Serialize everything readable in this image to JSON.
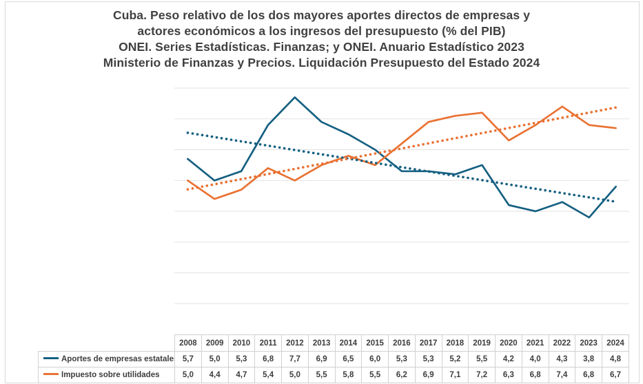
{
  "title": {
    "lines": [
      "Cuba. Peso relativo de los dos mayores aportes directos de empresas y",
      "actores económicos a los ingresos del presupuesto (% del PIB)",
      "ONEI. Series Estadísticas. Finanzas; y ONEI. Anuario Estadístico 2023",
      "Ministerio de Finanzas y Precios. Liquidación Presupuesto del Estado 2024"
    ],
    "color": "#404040"
  },
  "chart_data": {
    "type": "line",
    "categories": [
      "2008",
      "2009",
      "2010",
      "2011",
      "2012",
      "2013",
      "2014",
      "2015",
      "2016",
      "2017",
      "2018",
      "2019",
      "2020",
      "2021",
      "2022",
      "2023",
      "2024"
    ],
    "series": [
      {
        "name": "Aportes de empresas estatales",
        "color": "#156082",
        "values": [
          5.7,
          5.0,
          5.3,
          6.8,
          7.7,
          6.9,
          6.5,
          6.0,
          5.3,
          5.3,
          5.2,
          5.5,
          4.2,
          4.0,
          4.3,
          3.8,
          4.8
        ],
        "trendline": {
          "style": "dotted",
          "start": 6.55,
          "end": 4.31
        }
      },
      {
        "name": "Impuesto sobre utilidades",
        "color": "#E97132",
        "values": [
          5.0,
          4.4,
          4.7,
          5.4,
          5.0,
          5.5,
          5.8,
          5.5,
          6.2,
          6.9,
          7.1,
          7.2,
          6.3,
          6.8,
          7.4,
          6.8,
          6.7
        ],
        "trendline": {
          "style": "dotted",
          "start": 4.71,
          "end": 7.37
        }
      }
    ],
    "ylabel": "",
    "xlabel": "",
    "ylim": [
      0,
      8
    ],
    "gridlines": "horizontal",
    "y_axis_labels_visible": false,
    "legend_position": "data-table-left",
    "decimal_separator": ",",
    "gridline_color": "#E2E2E2"
  }
}
